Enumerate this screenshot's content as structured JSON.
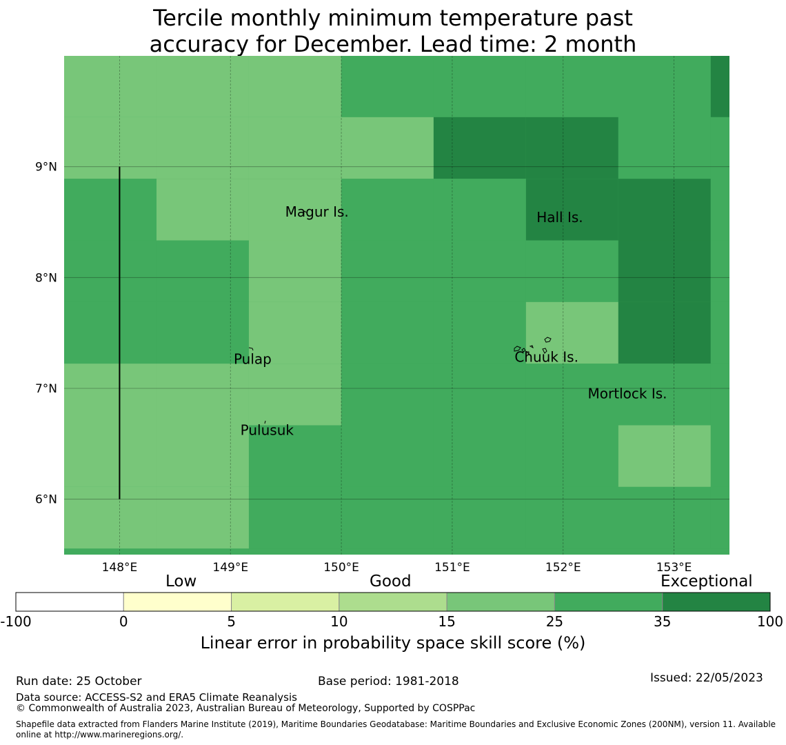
{
  "title": {
    "line1": "Tercile monthly minimum temperature past",
    "line2": "accuracy for December. Lead time: 2 month"
  },
  "map": {
    "lon_range": [
      147.5,
      153.5
    ],
    "lat_range": [
      5.5,
      10.0
    ],
    "lon_ticks": [
      148,
      149,
      150,
      151,
      152,
      153
    ],
    "lon_tick_labels": [
      "148°E",
      "149°E",
      "150°E",
      "151°E",
      "152°E",
      "153°E"
    ],
    "lat_ticks": [
      6,
      7,
      8,
      9
    ],
    "lat_tick_labels": [
      "6°N",
      "7°N",
      "8°N",
      "9°N"
    ],
    "cell_size_deg": [
      0.833,
      0.556
    ],
    "grid_origin": [
      147.5,
      5.555
    ],
    "colors_by_class": [
      "#ffffff",
      "#ffffcc",
      "#d9f0a3",
      "#addd8e",
      "#78c679",
      "#41ab5d",
      "#238443"
    ],
    "grid_classes_north_to_south": [
      [
        4,
        4,
        4,
        5,
        5,
        5,
        5,
        6
      ],
      [
        4,
        4,
        4,
        4,
        6,
        6,
        5,
        5
      ],
      [
        5,
        4,
        4,
        5,
        5,
        6,
        6,
        5
      ],
      [
        5,
        5,
        4,
        5,
        5,
        5,
        6,
        5
      ],
      [
        5,
        5,
        4,
        5,
        5,
        4,
        6,
        5
      ],
      [
        4,
        4,
        4,
        5,
        5,
        5,
        5,
        5
      ],
      [
        4,
        4,
        5,
        5,
        5,
        5,
        4,
        5
      ],
      [
        4,
        4,
        5,
        5,
        5,
        5,
        5,
        5
      ]
    ],
    "places": [
      {
        "name": "Magur Is.",
        "lon": 149.78,
        "lat": 8.55
      },
      {
        "name": "Hall Is.",
        "lon": 151.97,
        "lat": 8.5
      },
      {
        "name": "Pulap",
        "lon": 149.2,
        "lat": 7.22
      },
      {
        "name": "Chuuk Is.",
        "lon": 151.85,
        "lat": 7.24
      },
      {
        "name": "Mortlock Is.",
        "lon": 152.58,
        "lat": 6.91
      },
      {
        "name": "Pulusuk",
        "lon": 149.33,
        "lat": 6.58
      }
    ],
    "boundary_line": {
      "lon": 148.0,
      "lat_from": 6.0,
      "lat_to": 9.0
    }
  },
  "colorbar": {
    "categories": [
      "Low",
      "Good",
      "Exceptional"
    ],
    "tick_labels": [
      "-100",
      "0",
      "5",
      "10",
      "15",
      "25",
      "35",
      "100"
    ],
    "colors": [
      "#ffffff",
      "#ffffcc",
      "#d9f0a3",
      "#addd8e",
      "#78c679",
      "#41ab5d",
      "#238443"
    ],
    "label": "Linear error in probability space skill score (%)"
  },
  "footer": {
    "run_date": "Run date: 25 October",
    "base_period": "Base period: 1981-2018",
    "issued": "Issued: 22/05/2023",
    "data_source": "Data source: ACCESS-S2 and ERA5 Climate Reanalysis",
    "copyright": "© Commonwealth of Australia 2023, Australian Bureau of Meteorology, Supported by COSPPac",
    "shapefile": "Shapefile data extracted from Flanders Marine Institute (2019), Maritime Boundaries Geodatabase: Maritime Boundaries and Exclusive Economic Zones (200NM), version 11. Available online at http://www.marineregions.org/."
  }
}
